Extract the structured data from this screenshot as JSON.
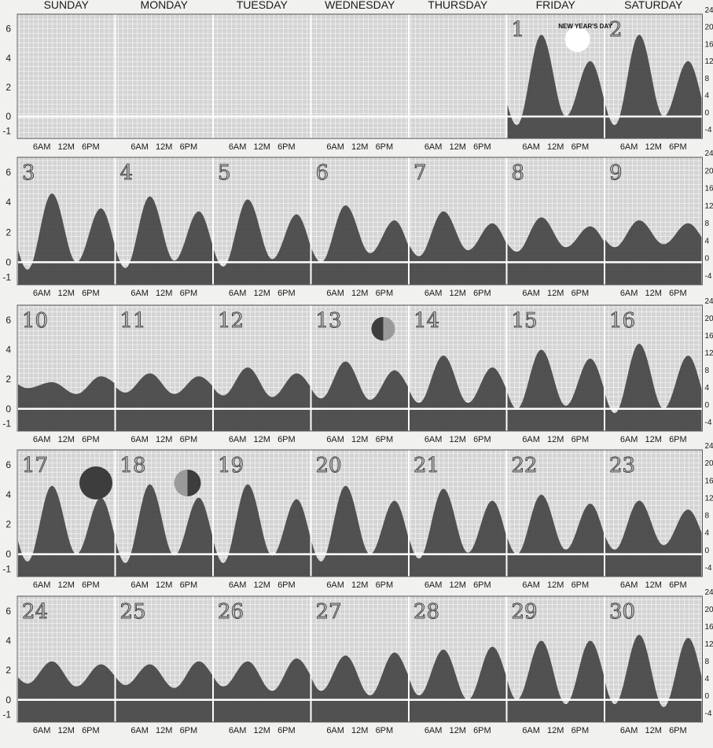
{
  "chart_data": {
    "type": "area",
    "title": "",
    "weekdays": [
      "SUNDAY",
      "MONDAY",
      "TUESDAY",
      "WEDNESDAY",
      "THURSDAY",
      "FRIDAY",
      "SATURDAY"
    ],
    "time_ticks": [
      "6AM",
      "12M",
      "6PM"
    ],
    "left_axis": {
      "ticks": [
        6,
        4,
        2,
        0,
        -1
      ],
      "ylim": [
        -1.5,
        7
      ]
    },
    "right_axis": {
      "ticks": [
        24,
        20,
        16,
        12,
        8,
        4,
        0,
        -4
      ]
    },
    "grid": true,
    "colors": {
      "fill": "#3d3d3d",
      "background": "#d6d6d6",
      "grid": "#ffffff"
    },
    "holidays": [
      {
        "day": 1,
        "label": "NEW YEAR'S DAY"
      }
    ],
    "moon_phases": [
      {
        "day": 1,
        "phase": "full-moon"
      },
      {
        "day": 13,
        "phase": "last-quarter"
      },
      {
        "day": 17,
        "phase": "new-moon"
      },
      {
        "day": 18,
        "phase": "first-quarter"
      }
    ],
    "days": [
      {
        "day": 1,
        "week": 0,
        "weekday": 5,
        "highs": [
          5.6,
          3.8
        ],
        "lows": [
          -0.6,
          0.0
        ]
      },
      {
        "day": 2,
        "week": 0,
        "weekday": 6,
        "highs": [
          5.6,
          3.8
        ],
        "lows": [
          -0.6,
          0.0
        ]
      },
      {
        "day": 3,
        "week": 1,
        "weekday": 0,
        "highs": [
          4.6,
          3.6
        ],
        "lows": [
          -0.5,
          0.0
        ]
      },
      {
        "day": 4,
        "week": 1,
        "weekday": 1,
        "highs": [
          4.4,
          3.4
        ],
        "lows": [
          -0.4,
          0.1
        ]
      },
      {
        "day": 5,
        "week": 1,
        "weekday": 2,
        "highs": [
          4.2,
          3.2
        ],
        "lows": [
          -0.3,
          0.2
        ]
      },
      {
        "day": 6,
        "week": 1,
        "weekday": 3,
        "highs": [
          3.8,
          2.8
        ],
        "lows": [
          0.0,
          0.6
        ]
      },
      {
        "day": 7,
        "week": 1,
        "weekday": 4,
        "highs": [
          3.4,
          2.6
        ],
        "lows": [
          0.4,
          0.8
        ]
      },
      {
        "day": 8,
        "week": 1,
        "weekday": 5,
        "highs": [
          3.0,
          2.4
        ],
        "lows": [
          0.7,
          1.0
        ]
      },
      {
        "day": 9,
        "week": 1,
        "weekday": 6,
        "highs": [
          2.8,
          2.6
        ],
        "lows": [
          1.0,
          1.2
        ]
      },
      {
        "day": 10,
        "week": 2,
        "weekday": 0,
        "highs": [
          1.8,
          2.2
        ],
        "lows": [
          1.4,
          1.0
        ]
      },
      {
        "day": 11,
        "week": 2,
        "weekday": 1,
        "highs": [
          2.4,
          2.2
        ],
        "lows": [
          1.1,
          1.0
        ]
      },
      {
        "day": 12,
        "week": 2,
        "weekday": 2,
        "highs": [
          2.8,
          2.4
        ],
        "lows": [
          0.9,
          0.8
        ]
      },
      {
        "day": 13,
        "week": 2,
        "weekday": 3,
        "highs": [
          3.2,
          2.6
        ],
        "lows": [
          0.7,
          0.6
        ]
      },
      {
        "day": 14,
        "week": 2,
        "weekday": 4,
        "highs": [
          3.6,
          2.8
        ],
        "lows": [
          0.4,
          0.4
        ]
      },
      {
        "day": 15,
        "week": 2,
        "weekday": 5,
        "highs": [
          4.0,
          3.4
        ],
        "lows": [
          0.0,
          0.2
        ]
      },
      {
        "day": 16,
        "week": 2,
        "weekday": 6,
        "highs": [
          4.4,
          3.6
        ],
        "lows": [
          -0.3,
          0.0
        ]
      },
      {
        "day": 17,
        "week": 3,
        "weekday": 0,
        "highs": [
          4.6,
          3.8
        ],
        "lows": [
          -0.5,
          0.0
        ]
      },
      {
        "day": 18,
        "week": 3,
        "weekday": 1,
        "highs": [
          4.7,
          3.8
        ],
        "lows": [
          -0.6,
          -0.1
        ]
      },
      {
        "day": 19,
        "week": 3,
        "weekday": 2,
        "highs": [
          4.7,
          3.7
        ],
        "lows": [
          -0.6,
          -0.1
        ]
      },
      {
        "day": 20,
        "week": 3,
        "weekday": 3,
        "highs": [
          4.6,
          3.6
        ],
        "lows": [
          -0.5,
          0.0
        ]
      },
      {
        "day": 21,
        "week": 3,
        "weekday": 4,
        "highs": [
          4.4,
          3.6
        ],
        "lows": [
          -0.3,
          0.1
        ]
      },
      {
        "day": 22,
        "week": 3,
        "weekday": 5,
        "highs": [
          4.0,
          3.4
        ],
        "lows": [
          0.0,
          0.3
        ]
      },
      {
        "day": 23,
        "week": 3,
        "weekday": 6,
        "highs": [
          3.6,
          3.0
        ],
        "lows": [
          0.3,
          0.6
        ]
      },
      {
        "day": 24,
        "week": 4,
        "weekday": 0,
        "highs": [
          2.6,
          2.4
        ],
        "lows": [
          1.1,
          0.9
        ]
      },
      {
        "day": 25,
        "week": 4,
        "weekday": 1,
        "highs": [
          2.4,
          2.6
        ],
        "lows": [
          1.0,
          0.8
        ]
      },
      {
        "day": 26,
        "week": 4,
        "weekday": 2,
        "highs": [
          2.6,
          2.8
        ],
        "lows": [
          0.9,
          0.6
        ]
      },
      {
        "day": 27,
        "week": 4,
        "weekday": 3,
        "highs": [
          3.0,
          3.2
        ],
        "lows": [
          0.6,
          0.3
        ]
      },
      {
        "day": 28,
        "week": 4,
        "weekday": 4,
        "highs": [
          3.4,
          3.6
        ],
        "lows": [
          0.3,
          0.0
        ]
      },
      {
        "day": 29,
        "week": 4,
        "weekday": 5,
        "highs": [
          4.0,
          4.0
        ],
        "lows": [
          0.0,
          -0.3
        ]
      },
      {
        "day": 30,
        "week": 4,
        "weekday": 6,
        "highs": [
          4.4,
          4.2
        ],
        "lows": [
          -0.3,
          -0.5
        ]
      }
    ]
  }
}
